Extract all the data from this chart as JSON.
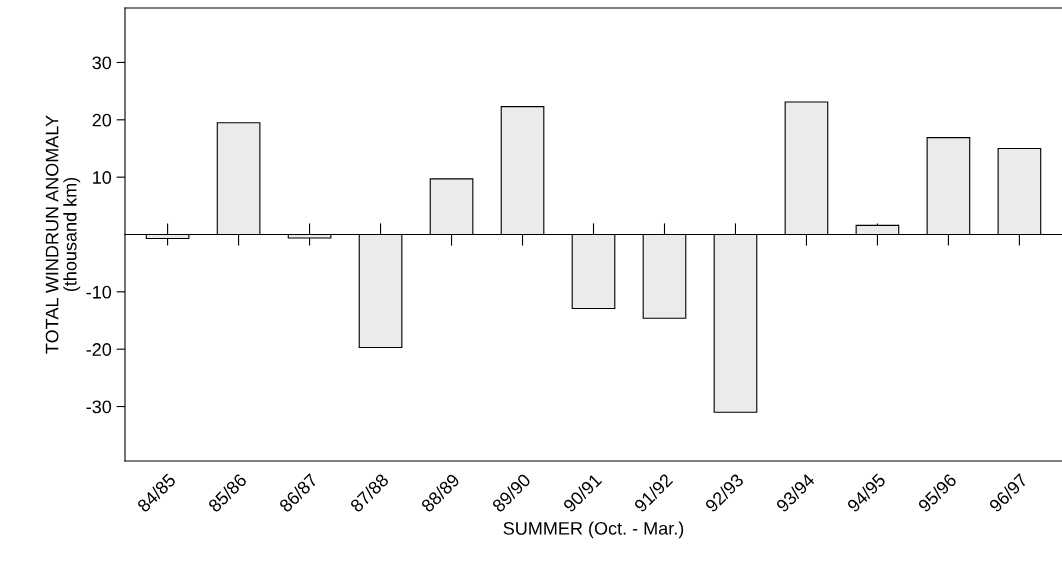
{
  "chart_data": {
    "type": "bar",
    "categories": [
      "84/85",
      "85/86",
      "86/87",
      "87/88",
      "88/89",
      "89/90",
      "90/91",
      "91/92",
      "92/93",
      "93/94",
      "94/95",
      "95/96",
      "96/97"
    ],
    "values": [
      -0.7,
      19.5,
      -0.6,
      -19.7,
      9.7,
      22.3,
      -12.9,
      -14.6,
      -31.0,
      23.1,
      1.6,
      16.9,
      15.0
    ],
    "color": "#ebebeb",
    "xlabel": "SUMMER (Oct. - Mar.)",
    "ylabel": "TOTAL WINDRUN ANOMALY\n(thousand km)",
    "ylim": [
      -39.5,
      39.5
    ],
    "yticks": [
      -30,
      -20,
      -10,
      10,
      20,
      30
    ],
    "grid": false,
    "legend": false
  }
}
